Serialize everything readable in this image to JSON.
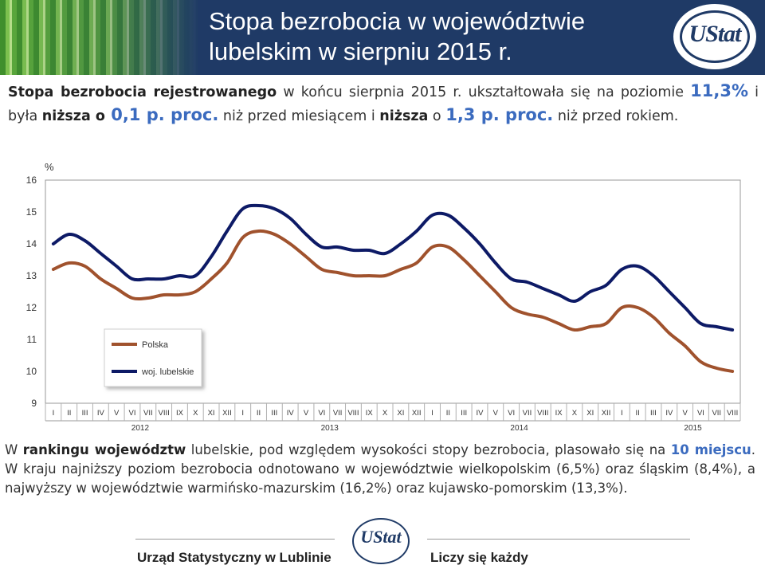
{
  "header": {
    "title_line1": "Stopa bezrobocia w województwie",
    "title_line2": "lubelskim w sierpniu 2015 r.",
    "logo_text": "UStat"
  },
  "intro": {
    "p1": "Stopa bezrobocia rejestrowanego",
    "p2": " w końcu sierpnia 2015 r. ukształtowała się na poziomie ",
    "p3": "11,3%",
    "p4": " i była ",
    "p5": "niższa o",
    "p6": " 0,1 p. proc.",
    "p7": " niż przed miesiącem i ",
    "p8": "niższa",
    "p9": " o ",
    "p10": "1,3 p. proc.",
    "p11": " niż przed rokiem."
  },
  "ranking": {
    "r1": "W ",
    "r2": "rankingu województw",
    "r3": " lubelskie, pod względem wysokości stopy bezrobocia, plasowało się na ",
    "r4": "10 miejscu",
    "r5": ". W kraju najniższy poziom bezrobocia odnotowano w województwie wielkopolskim (6,5%) oraz śląskim (8,4%), a najwyższy w województwie warmińsko-mazurskim (16,2%) oraz kujawsko-pomorskim (13,3%)."
  },
  "footer": {
    "left": "Urząd Statystyczny w Lublinie",
    "right": "Liczy się każdy",
    "logo_text": "UStat"
  },
  "colors": {
    "header_bg": "#1f3a66",
    "polska": "#a0522d",
    "lubelskie": "#0d1a66",
    "accent_text": "#3b6bbf"
  },
  "chart_data": {
    "type": "line",
    "ylabel": "%",
    "ylim": [
      9,
      16
    ],
    "yticks": [
      "16",
      "15",
      "14",
      "13",
      "12",
      "11",
      "10",
      "9"
    ],
    "month_labels": [
      "I",
      "II",
      "III",
      "IV",
      "V",
      "VI",
      "VII",
      "VIII",
      "IX",
      "X",
      "XI",
      "XII",
      "I",
      "II",
      "III",
      "IV",
      "V",
      "VI",
      "VII",
      "VIII",
      "IX",
      "X",
      "XI",
      "XII",
      "I",
      "II",
      "III",
      "IV",
      "V",
      "VI",
      "VII",
      "VIII",
      "IX",
      "X",
      "XI",
      "XII",
      "I",
      "II",
      "III",
      "IV",
      "V",
      "VI",
      "VII",
      "VIII"
    ],
    "year_labels": [
      {
        "label": "2012",
        "month_index": 5.5
      },
      {
        "label": "2013",
        "month_index": 17.5
      },
      {
        "label": "2014",
        "month_index": 29.5
      },
      {
        "label": "2015",
        "month_index": 40.5
      }
    ],
    "legend_placement": "inside-lower-left",
    "series": [
      {
        "name": "Polska",
        "color": "#a0522d",
        "values": [
          13.2,
          13.4,
          13.3,
          12.9,
          12.6,
          12.3,
          12.3,
          12.4,
          12.4,
          12.5,
          12.9,
          13.4,
          14.2,
          14.4,
          14.3,
          14.0,
          13.6,
          13.2,
          13.1,
          13.0,
          13.0,
          13.0,
          13.2,
          13.4,
          13.9,
          13.9,
          13.5,
          13.0,
          12.5,
          12.0,
          11.8,
          11.7,
          11.5,
          11.3,
          11.4,
          11.5,
          12.0,
          12.0,
          11.7,
          11.2,
          10.8,
          10.3,
          10.1,
          10.0
        ]
      },
      {
        "name": "woj. lubelskie",
        "color": "#0d1a66",
        "values": [
          14.0,
          14.3,
          14.1,
          13.7,
          13.3,
          12.9,
          12.9,
          12.9,
          13.0,
          13.0,
          13.6,
          14.4,
          15.1,
          15.2,
          15.1,
          14.8,
          14.3,
          13.9,
          13.9,
          13.8,
          13.8,
          13.7,
          14.0,
          14.4,
          14.9,
          14.9,
          14.5,
          14.0,
          13.4,
          12.9,
          12.8,
          12.6,
          12.4,
          12.2,
          12.5,
          12.7,
          13.2,
          13.3,
          13.0,
          12.5,
          12.0,
          11.5,
          11.4,
          11.3
        ]
      }
    ]
  }
}
